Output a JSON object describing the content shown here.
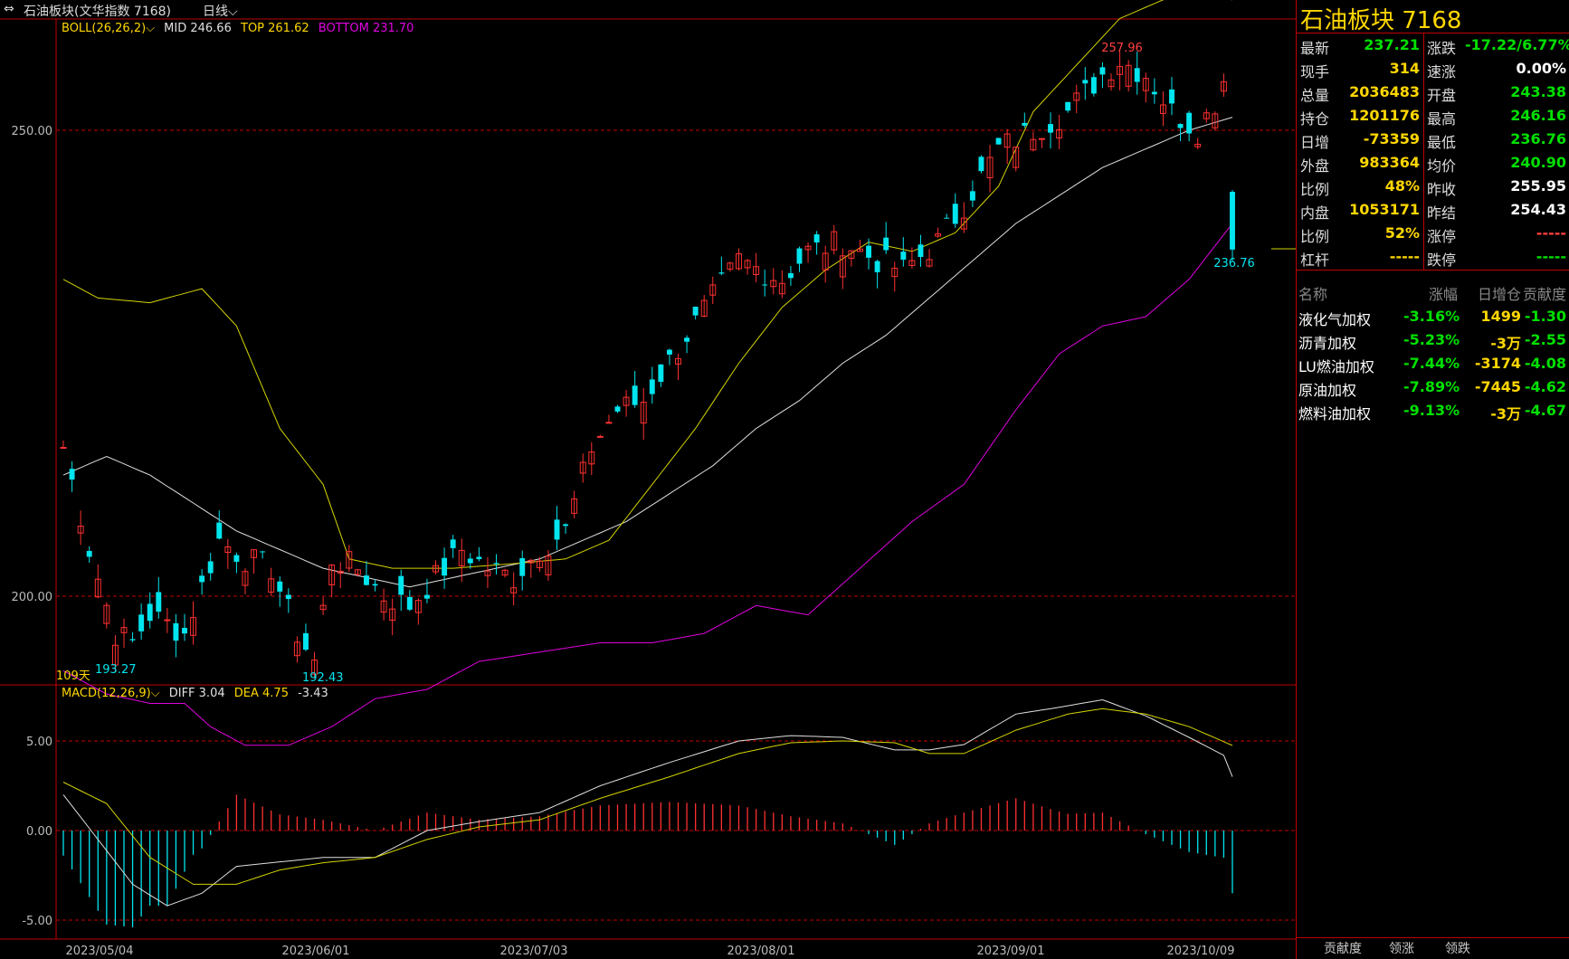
{
  "header": {
    "title": "石油板块(文华指数 7168)",
    "period": "日线"
  },
  "boll": {
    "label": "BOLL(26,26,2)",
    "mid": "MID 246.66",
    "top": "TOP 261.62",
    "bottom": "BOTTOM 231.70"
  },
  "macd": {
    "label": "MACD(12,26,9)",
    "diff": "DIFF 3.04",
    "dea": "DEA 4.75",
    "macd": "-3.43"
  },
  "price_axis": [
    "250.00",
    "200.00"
  ],
  "macd_axis": [
    "5.00",
    "0.00",
    "-5.00"
  ],
  "x_axis": [
    "2023/05/04",
    "2023/06/01",
    "2023/07/03",
    "2023/08/01",
    "2023/09/01",
    "2023/10/09"
  ],
  "annotations": {
    "high": "257.96",
    "last_low": "236.76",
    "low1": "193.27",
    "low2": "192.43",
    "days": "109天"
  },
  "colors": {
    "up": "#ff3030",
    "down": "#00e5ee",
    "mid": "#e0e0e0",
    "top": "#d4d400",
    "bottom": "#e000e0",
    "grid": "#c00000"
  },
  "panel": {
    "title": "石油板块  7168",
    "quotes": [
      {
        "l1": "最新",
        "v1": "237.21",
        "c1": "green",
        "l2": "涨跌",
        "v2": "-17.22/6.77%",
        "c2": "green"
      },
      {
        "l1": "现手",
        "v1": "314",
        "c1": "yellow",
        "l2": "速涨",
        "v2": "0.00%",
        "c2": "white"
      },
      {
        "l1": "总量",
        "v1": "2036483",
        "c1": "yellow",
        "l2": "开盘",
        "v2": "243.38",
        "c2": "green"
      },
      {
        "l1": "持仓",
        "v1": "1201176",
        "c1": "yellow",
        "l2": "最高",
        "v2": "246.16",
        "c2": "green"
      },
      {
        "l1": "日增",
        "v1": "-73359",
        "c1": "yellow",
        "l2": "最低",
        "v2": "236.76",
        "c2": "green"
      },
      {
        "l1": "外盘",
        "v1": "983364",
        "c1": "yellow",
        "l2": "均价",
        "v2": "240.90",
        "c2": "green"
      },
      {
        "l1": "比例",
        "v1": "48%",
        "c1": "yellow",
        "l2": "昨收",
        "v2": "255.95",
        "c2": "white"
      },
      {
        "l1": "内盘",
        "v1": "1053171",
        "c1": "yellow",
        "l2": "昨结",
        "v2": "254.43",
        "c2": "white"
      },
      {
        "l1": "比例",
        "v1": "52%",
        "c1": "yellow",
        "l2": "涨停",
        "v2": "-----",
        "c2": "red"
      },
      {
        "l1": "杠杆",
        "v1": "-----",
        "c1": "yellow",
        "l2": "跌停",
        "v2": "-----",
        "c2": "green"
      }
    ],
    "contrib_headers": [
      "名称",
      "涨幅",
      "日增仓",
      "贡献度"
    ],
    "contrib": [
      {
        "name": "液化气加权",
        "chg": "-3.16%",
        "inc": "1499",
        "contrib": "-1.30"
      },
      {
        "name": "沥青加权",
        "chg": "-5.23%",
        "inc": "-3万",
        "contrib": "-2.55"
      },
      {
        "name": "LU燃油加权",
        "chg": "-7.44%",
        "inc": "-3174",
        "contrib": "-4.08"
      },
      {
        "name": "原油加权",
        "chg": "-7.89%",
        "inc": "-7445",
        "contrib": "-4.62"
      },
      {
        "name": "燃料油加权",
        "chg": "-9.13%",
        "inc": "-3万",
        "contrib": "-4.67"
      }
    ],
    "tabs": [
      "贡献度",
      "领涨",
      "领跌"
    ]
  }
}
